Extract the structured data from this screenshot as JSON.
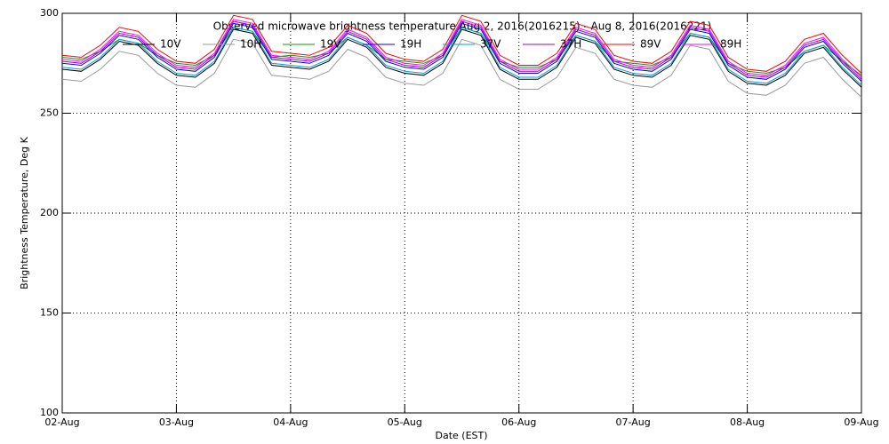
{
  "chart_data": {
    "type": "line",
    "title": "Observed microwave brightness temperature Aug  2, 2016(2016215) - Aug  8, 2016(2016221)",
    "xlabel": "Date (EST)",
    "ylabel": "Brightness Temperature, Deg K",
    "x": [
      0,
      4,
      8,
      12,
      16,
      20,
      24,
      28,
      32,
      36,
      40,
      44,
      48,
      52,
      56,
      60,
      64,
      68,
      72,
      76,
      80,
      84,
      88,
      92,
      96,
      100,
      104,
      108,
      112,
      116,
      120,
      124,
      128,
      132,
      136,
      140,
      144,
      148,
      152,
      156,
      160,
      164,
      168
    ],
    "xlim": [
      0,
      168
    ],
    "xticks": [
      {
        "value": 0,
        "label": "02-Aug"
      },
      {
        "value": 24,
        "label": "03-Aug"
      },
      {
        "value": 48,
        "label": "04-Aug"
      },
      {
        "value": 72,
        "label": "05-Aug"
      },
      {
        "value": 96,
        "label": "06-Aug"
      },
      {
        "value": 120,
        "label": "07-Aug"
      },
      {
        "value": 144,
        "label": "08-Aug"
      },
      {
        "value": 168,
        "label": "09-Aug"
      }
    ],
    "ylim": [
      100,
      300
    ],
    "yticks": [
      100,
      150,
      200,
      250,
      300
    ],
    "grid": true,
    "series": [
      {
        "name": "10V",
        "color": "#000000",
        "values": [
          272,
          271,
          277,
          286,
          284,
          275,
          269,
          268,
          275,
          292,
          290,
          274,
          273,
          272,
          276,
          287,
          283,
          273,
          270,
          269,
          275,
          292,
          289,
          272,
          267,
          267,
          273,
          288,
          285,
          272,
          269,
          268,
          274,
          289,
          287,
          271,
          265,
          264,
          269,
          280,
          283,
          272,
          263
        ]
      },
      {
        "name": "10H",
        "color": "#999999",
        "values": [
          267,
          266,
          272,
          281,
          279,
          270,
          264,
          263,
          270,
          287,
          285,
          269,
          268,
          267,
          271,
          282,
          278,
          268,
          265,
          264,
          270,
          287,
          284,
          267,
          262,
          262,
          268,
          283,
          280,
          267,
          264,
          263,
          269,
          284,
          282,
          266,
          260,
          259,
          264,
          275,
          278,
          267,
          258
        ]
      },
      {
        "name": "19V",
        "color": "#00a000",
        "values": [
          278,
          277,
          281,
          287,
          285,
          279,
          275,
          274,
          279,
          293,
          291,
          278,
          279,
          278,
          280,
          288,
          284,
          277,
          276,
          275,
          279,
          293,
          290,
          276,
          273,
          273,
          277,
          289,
          286,
          276,
          275,
          274,
          278,
          290,
          288,
          275,
          271,
          270,
          273,
          281,
          284,
          276,
          269
        ]
      },
      {
        "name": "19H",
        "color": "#0000ff",
        "values": [
          275,
          274,
          280,
          289,
          287,
          278,
          272,
          271,
          278,
          295,
          293,
          277,
          276,
          275,
          279,
          290,
          286,
          276,
          273,
          272,
          278,
          295,
          292,
          275,
          270,
          270,
          276,
          291,
          288,
          275,
          272,
          271,
          277,
          292,
          290,
          274,
          268,
          267,
          272,
          283,
          286,
          275,
          266
        ]
      },
      {
        "name": "37V",
        "color": "#00a0e0",
        "values": [
          273,
          272,
          278,
          287,
          285,
          276,
          270,
          269,
          276,
          293,
          291,
          275,
          274,
          273,
          277,
          288,
          284,
          274,
          271,
          270,
          276,
          293,
          290,
          273,
          268,
          268,
          274,
          289,
          286,
          273,
          270,
          269,
          275,
          290,
          288,
          272,
          266,
          265,
          270,
          281,
          284,
          273,
          264
        ]
      },
      {
        "name": "37H",
        "color": "#a000c0",
        "values": [
          276,
          275,
          281,
          290,
          288,
          279,
          273,
          272,
          279,
          296,
          294,
          278,
          277,
          276,
          280,
          291,
          287,
          277,
          274,
          273,
          279,
          296,
          293,
          276,
          271,
          271,
          277,
          292,
          289,
          276,
          273,
          272,
          278,
          293,
          291,
          275,
          269,
          268,
          273,
          284,
          287,
          276,
          267
        ]
      },
      {
        "name": "89V",
        "color": "#ff0000",
        "values": [
          279,
          278,
          284,
          293,
          291,
          282,
          276,
          275,
          282,
          299,
          297,
          281,
          280,
          279,
          283,
          294,
          290,
          280,
          277,
          276,
          282,
          299,
          296,
          279,
          274,
          274,
          280,
          295,
          292,
          279,
          276,
          275,
          281,
          296,
          294,
          278,
          272,
          271,
          276,
          287,
          290,
          279,
          270
        ]
      },
      {
        "name": "89H",
        "color": "#ff00ff",
        "values": [
          277,
          276,
          282,
          291,
          289,
          280,
          274,
          273,
          280,
          297,
          295,
          279,
          278,
          277,
          281,
          292,
          288,
          278,
          275,
          274,
          280,
          297,
          294,
          277,
          272,
          272,
          278,
          293,
          290,
          277,
          274,
          273,
          279,
          294,
          292,
          276,
          270,
          269,
          274,
          285,
          288,
          277,
          268
        ]
      }
    ]
  }
}
